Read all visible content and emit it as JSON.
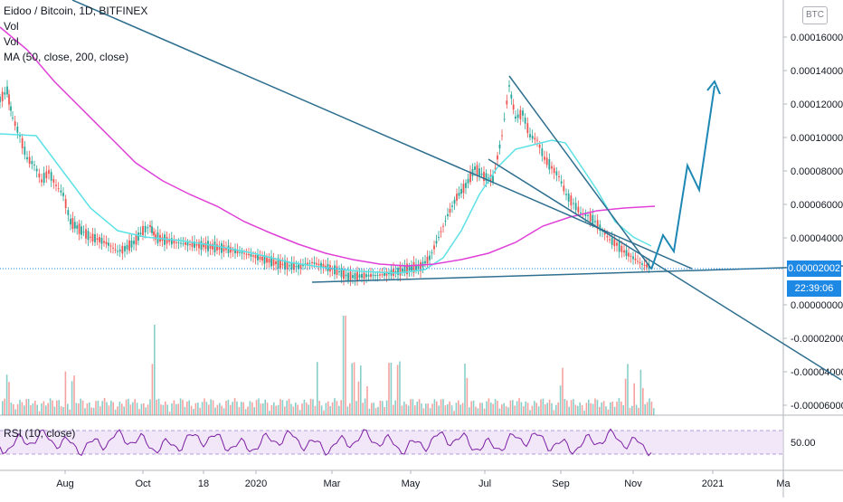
{
  "legend": {
    "title": "Eidoo / Bitcoin, 1D, BITFINEX",
    "vol1": "Vol",
    "vol2": "Vol",
    "ma": "MA (50, close, 200, close)"
  },
  "rsi_label": "RSI (10, close)",
  "currency_badge": "BTC",
  "price_tag": "0.00002002",
  "countdown_tag": "22:39:06",
  "colors": {
    "ma50": "#5ce1e6",
    "ma200": "#e040d8",
    "trendline": "#2f6f8f",
    "projection": "#1e88b5",
    "up": "#26a69a",
    "down": "#ef5350",
    "rsi": "#7b1fa2",
    "rsi_band": "#e9d7f5",
    "price_tag_bg": "#1e88e5"
  },
  "chart_data": {
    "type": "candlestick",
    "title": "Eidoo / Bitcoin, 1D, BITFINEX",
    "x_ticks": [
      "Aug",
      "Oct",
      "18",
      "2020",
      "Mar",
      "May",
      "Jul",
      "Sep",
      "Nov",
      "2021",
      "Ma"
    ],
    "y_ticks": [
      "0.00016000",
      "0.00014000",
      "0.00012000",
      "0.00010000",
      "0.00008000",
      "0.00006000",
      "0.00004000",
      "0.00000000",
      "-0.00002000",
      "-0.00004000",
      "-0.00006000"
    ],
    "ylim": [
      -6e-05,
      0.00016
    ],
    "last_price": 2.002e-05,
    "series": [
      {
        "name": "MA 50",
        "type": "line"
      },
      {
        "name": "MA 200",
        "type": "line"
      },
      {
        "name": "Vol",
        "type": "bar"
      }
    ],
    "rsi": {
      "name": "RSI (10, close)",
      "level_label": "50.00"
    }
  }
}
